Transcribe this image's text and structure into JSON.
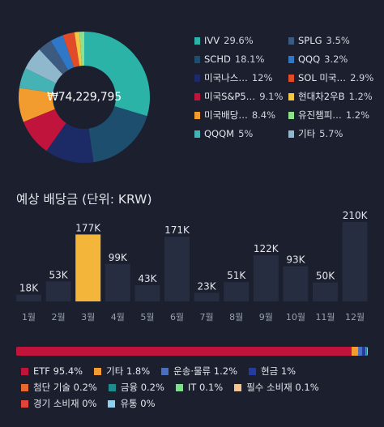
{
  "holdings": {
    "total_value": "₩74,229,795",
    "items": [
      {
        "name": "IVV",
        "pct": "29.6%",
        "color": "#2bb3a8",
        "value": 29.6
      },
      {
        "name": "SPLG",
        "pct": "3.5%",
        "color": "#3d5a80",
        "value": 3.5
      },
      {
        "name": "SCHD",
        "pct": "18.1%",
        "color": "#1e4e6e",
        "value": 18.1
      },
      {
        "name": "QQQ",
        "pct": "3.2%",
        "color": "#2e78c7",
        "value": 3.2
      },
      {
        "name": "미국나스…",
        "pct": "12%",
        "color": "#1c2a66",
        "value": 12
      },
      {
        "name": "SOL 미국…",
        "pct": "2.9%",
        "color": "#e14b2a",
        "value": 2.9
      },
      {
        "name": "미국S&P5…",
        "pct": "9.1%",
        "color": "#c0143c",
        "value": 9.1
      },
      {
        "name": "현대차2우B",
        "pct": "1.2%",
        "color": "#f2c744",
        "value": 1.2
      },
      {
        "name": "미국배당…",
        "pct": "8.4%",
        "color": "#f29b2e",
        "value": 8.4
      },
      {
        "name": "유진챔피…",
        "pct": "1.2%",
        "color": "#8fe08a",
        "value": 1.2
      },
      {
        "name": "QQQM",
        "pct": "5%",
        "color": "#45b3b6",
        "value": 5
      },
      {
        "name": "기타",
        "pct": "5.7%",
        "color": "#8fb8cc",
        "value": 5.7
      }
    ]
  },
  "dividends": {
    "title": "예상 배당금 (단위: KRW)"
  },
  "chart_data": {
    "type": "bar",
    "categories": [
      "1월",
      "2월",
      "3월",
      "4월",
      "5월",
      "6월",
      "7월",
      "8월",
      "9월",
      "10월",
      "11월",
      "12월"
    ],
    "values": [
      18,
      53,
      177,
      99,
      43,
      171,
      23,
      51,
      122,
      93,
      50,
      210
    ],
    "value_labels": [
      "18K",
      "53K",
      "177K",
      "99K",
      "43K",
      "171K",
      "23K",
      "51K",
      "122K",
      "93K",
      "50K",
      "210K"
    ],
    "highlight_index": 2,
    "bar_color": "#262d40",
    "highlight_color": "#f4b63a",
    "ylim": [
      0,
      210
    ]
  },
  "sectors": [
    {
      "name": "ETF",
      "pct": "95.4%",
      "color": "#c0143c",
      "value": 95.4
    },
    {
      "name": "기타",
      "pct": "1.8%",
      "color": "#f29b2e",
      "value": 1.8
    },
    {
      "name": "운송·물류",
      "pct": "1.2%",
      "color": "#4a6fbf",
      "value": 1.2
    },
    {
      "name": "현금",
      "pct": "1%",
      "color": "#243ba0",
      "value": 1
    },
    {
      "name": "첨단 기술",
      "pct": "0.2%",
      "color": "#e8692e",
      "value": 0.2
    },
    {
      "name": "금융",
      "pct": "0.2%",
      "color": "#1d8c8a",
      "value": 0.2
    },
    {
      "name": "IT",
      "pct": "0.1%",
      "color": "#7be08a",
      "value": 0.1
    },
    {
      "name": "필수 소비재",
      "pct": "0.1%",
      "color": "#f5c58f",
      "value": 0.1
    },
    {
      "name": "경기 소비재",
      "pct": "0%",
      "color": "#e0443c",
      "value": 0
    },
    {
      "name": "유통",
      "pct": "0%",
      "color": "#8fd0ee",
      "value": 0
    }
  ]
}
